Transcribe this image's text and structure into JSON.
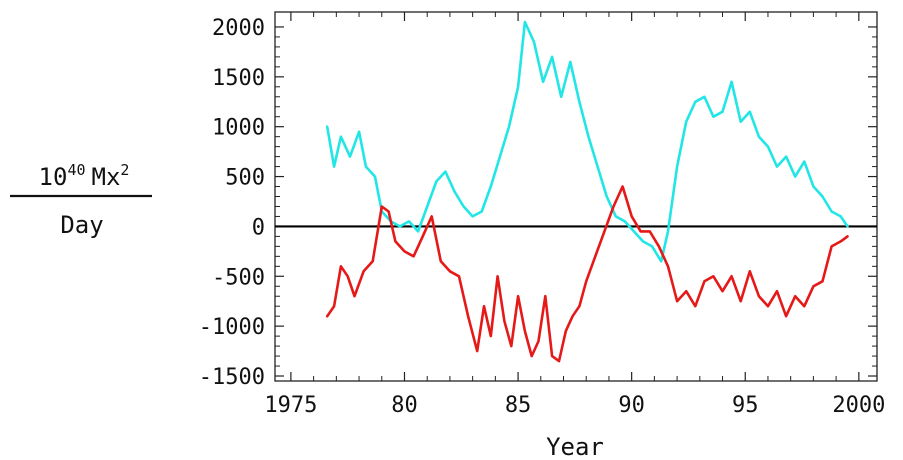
{
  "chart_data": {
    "type": "line",
    "title": "",
    "xlabel": "Year",
    "ylabel_numerator": "10",
    "ylabel_exponent": "40",
    "ylabel_unit_base": "Mx",
    "ylabel_unit_exponent": "2",
    "ylabel_denominator": "Day",
    "xlim": [
      1974.3,
      2000.8
    ],
    "ylim": [
      -1550,
      2150
    ],
    "xticks": [
      1975,
      1980,
      1985,
      1990,
      1995,
      2000
    ],
    "xtick_labels": [
      "1975",
      "80",
      "85",
      "90",
      "95",
      "2000"
    ],
    "yticks": [
      -1500,
      -1000,
      -500,
      0,
      500,
      1000,
      1500,
      2000
    ],
    "ytick_labels": [
      "-1500",
      "-1000",
      "-500",
      "0",
      "500",
      "1000",
      "1500",
      "2000"
    ],
    "zero_line": true,
    "grid": false,
    "series": [
      {
        "color": "#22e6e6",
        "x": [
          1976.6,
          1976.9,
          1977.2,
          1977.6,
          1978.0,
          1978.3,
          1978.7,
          1979.0,
          1979.4,
          1979.8,
          1980.2,
          1980.6,
          1981.0,
          1981.4,
          1981.8,
          1982.2,
          1982.6,
          1983.0,
          1983.4,
          1983.8,
          1984.2,
          1984.6,
          1985.0,
          1985.3,
          1985.7,
          1986.1,
          1986.5,
          1986.9,
          1987.3,
          1987.7,
          1988.1,
          1988.5,
          1988.9,
          1989.3,
          1989.7,
          1990.1,
          1990.5,
          1990.9,
          1991.3,
          1991.6,
          1992.0,
          1992.4,
          1992.8,
          1993.2,
          1993.6,
          1994.0,
          1994.4,
          1994.8,
          1995.2,
          1995.6,
          1996.0,
          1996.4,
          1996.8,
          1997.2,
          1997.6,
          1998.0,
          1998.4,
          1998.8,
          1999.2,
          1999.5
        ],
        "y": [
          1000,
          600,
          900,
          700,
          950,
          600,
          500,
          150,
          50,
          0,
          50,
          -50,
          200,
          450,
          550,
          350,
          200,
          100,
          150,
          400,
          700,
          1000,
          1400,
          2050,
          1850,
          1450,
          1700,
          1300,
          1650,
          1250,
          900,
          600,
          300,
          100,
          50,
          -50,
          -150,
          -200,
          -350,
          -50,
          600,
          1050,
          1250,
          1300,
          1100,
          1150,
          1450,
          1050,
          1150,
          900,
          800,
          600,
          700,
          500,
          650,
          400,
          300,
          150,
          100,
          0
        ]
      },
      {
        "color": "#e61919",
        "x": [
          1976.6,
          1976.9,
          1977.2,
          1977.5,
          1977.8,
          1978.2,
          1978.6,
          1979.0,
          1979.3,
          1979.6,
          1980.0,
          1980.4,
          1980.8,
          1981.2,
          1981.6,
          1982.0,
          1982.4,
          1982.8,
          1983.2,
          1983.5,
          1983.8,
          1984.1,
          1984.4,
          1984.7,
          1985.0,
          1985.3,
          1985.6,
          1985.9,
          1986.2,
          1986.5,
          1986.8,
          1987.1,
          1987.4,
          1987.7,
          1988.0,
          1988.4,
          1988.8,
          1989.2,
          1989.6,
          1990.0,
          1990.4,
          1990.8,
          1991.2,
          1991.6,
          1992.0,
          1992.4,
          1992.8,
          1993.2,
          1993.6,
          1994.0,
          1994.4,
          1994.8,
          1995.2,
          1995.6,
          1996.0,
          1996.4,
          1996.8,
          1997.2,
          1997.6,
          1998.0,
          1998.4,
          1998.8,
          1999.2,
          1999.5
        ],
        "y": [
          -900,
          -800,
          -400,
          -500,
          -700,
          -450,
          -350,
          200,
          150,
          -150,
          -250,
          -300,
          -100,
          100,
          -350,
          -450,
          -500,
          -900,
          -1250,
          -800,
          -1100,
          -500,
          -950,
          -1200,
          -700,
          -1050,
          -1300,
          -1150,
          -700,
          -1300,
          -1350,
          -1050,
          -900,
          -800,
          -550,
          -300,
          -50,
          200,
          400,
          100,
          -50,
          -50,
          -200,
          -400,
          -750,
          -650,
          -800,
          -550,
          -500,
          -650,
          -500,
          -750,
          -450,
          -700,
          -800,
          -650,
          -900,
          -700,
          -800,
          -600,
          -550,
          -200,
          -150,
          -100
        ]
      }
    ]
  }
}
